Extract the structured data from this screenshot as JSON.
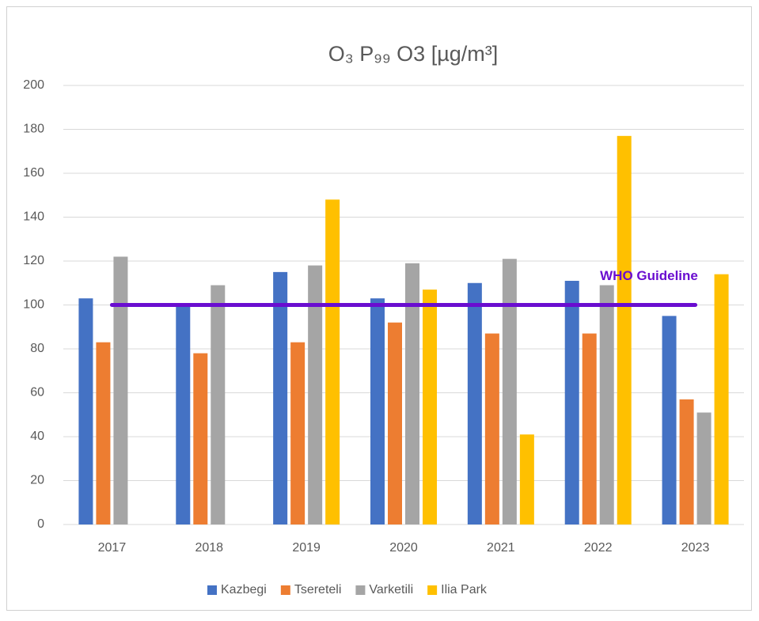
{
  "chart_data": {
    "type": "bar",
    "title": "O₃ P₉₉ O3 [µg/m³]",
    "categories": [
      "2017",
      "2018",
      "2019",
      "2020",
      "2021",
      "2022",
      "2023"
    ],
    "series": [
      {
        "name": "Kazbegi",
        "color": "#4472c4",
        "values": [
          103,
          100,
          115,
          103,
          110,
          111,
          95
        ]
      },
      {
        "name": "Tsereteli",
        "color": "#ed7d31",
        "values": [
          83,
          78,
          83,
          92,
          87,
          87,
          57
        ]
      },
      {
        "name": "Varketili",
        "color": "#a5a5a5",
        "values": [
          122,
          109,
          118,
          119,
          121,
          109,
          51
        ]
      },
      {
        "name": "Ilia Park",
        "color": "#ffc000",
        "values": [
          null,
          null,
          148,
          107,
          41,
          177,
          114
        ]
      }
    ],
    "ylim": [
      0,
      200
    ],
    "yticks": [
      0,
      20,
      40,
      60,
      80,
      100,
      120,
      140,
      160,
      180,
      200
    ],
    "grid": true,
    "guideline": {
      "text": "WHO Guideline",
      "value": 100,
      "color": "#6a0dd0"
    },
    "legend": "bottom"
  }
}
